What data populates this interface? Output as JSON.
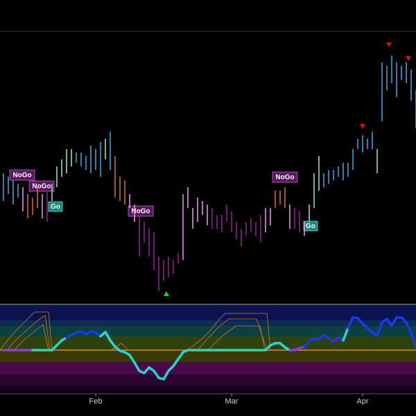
{
  "chart_data": {
    "type": "ohlc",
    "categories": [
      null,
      null,
      null,
      null,
      null,
      null,
      null,
      null,
      null,
      null,
      null,
      null,
      null,
      null,
      null,
      null,
      null,
      null,
      null,
      "Feb",
      null,
      null,
      null,
      null,
      null,
      null,
      null,
      null,
      null,
      null,
      null,
      null,
      null,
      null,
      null,
      null,
      null,
      null,
      null,
      null,
      null,
      null,
      null,
      null,
      null,
      null,
      null,
      "Mar",
      null,
      null,
      null,
      null,
      null,
      null,
      null,
      null,
      null,
      null,
      null,
      null,
      null,
      null,
      null,
      null,
      null,
      null,
      null,
      null,
      null,
      null,
      null,
      null,
      null,
      null,
      "Apr",
      null,
      null,
      null,
      null,
      null,
      null,
      null,
      null,
      null,
      null,
      null
    ],
    "high": [
      190,
      185,
      180,
      175,
      170,
      160,
      155,
      170,
      160,
      165,
      175,
      200,
      210,
      225,
      225,
      220,
      220,
      215,
      230,
      225,
      235,
      240,
      250,
      215,
      185,
      180,
      160,
      145,
      130,
      120,
      110,
      105,
      70,
      65,
      70,
      65,
      75,
      160,
      170,
      140,
      155,
      150,
      145,
      140,
      130,
      130,
      145,
      135,
      120,
      110,
      120,
      125,
      120,
      130,
      140,
      140,
      165,
      165,
      170,
      145,
      140,
      135,
      120,
      145,
      190,
      215,
      190,
      195,
      195,
      200,
      205,
      205,
      225,
      240,
      245,
      240,
      250,
      225,
      350,
      345,
      360,
      350,
      345,
      350,
      340,
      310
    ],
    "low": [
      150,
      160,
      145,
      155,
      135,
      125,
      130,
      140,
      125,
      120,
      150,
      170,
      185,
      190,
      200,
      205,
      200,
      195,
      190,
      195,
      185,
      210,
      195,
      155,
      150,
      145,
      140,
      120,
      70,
      90,
      70,
      50,
      20,
      35,
      40,
      45,
      60,
      65,
      140,
      110,
      120,
      130,
      115,
      110,
      110,
      105,
      120,
      105,
      95,
      85,
      100,
      105,
      100,
      90,
      105,
      115,
      140,
      145,
      140,
      110,
      110,
      105,
      100,
      120,
      140,
      165,
      170,
      175,
      180,
      185,
      180,
      185,
      195,
      225,
      220,
      225,
      225,
      190,
      265,
      310,
      320,
      300,
      325,
      320,
      295,
      255
    ],
    "colors": [
      "#3aa0d8",
      "#3aa0d8",
      "#3aa0d8",
      "#3aa0d8",
      "#e090e8",
      "#d2691e",
      "#d2691e",
      "#d2691e",
      "#e090e8",
      "#8e1f8e",
      "#7fe3c0",
      "#7fe3c0",
      "#7fe3c0",
      "#7fe3c0",
      "#7fe3c0",
      "#3aa0d8",
      "#3aa0d8",
      "#3aa0d8",
      "#3aa0d8",
      "#3aa0d8",
      "#3aa0d8",
      "#7fe3c0",
      "#3aa0d8",
      "#d2691e",
      "#d2691e",
      "#d2691e",
      "#e090e8",
      "#e090e8",
      "#8e1f8e",
      "#8e1f8e",
      "#8e1f8e",
      "#8e1f8e",
      "#8e1f8e",
      "#8e1f8e",
      "#8e1f8e",
      "#8e1f8e",
      "#8e1f8e",
      "#e090e8",
      "#e090e8",
      "#e090e8",
      "#e090e8",
      "#e090e8",
      "#e090e8",
      "#8e1f8e",
      "#8e1f8e",
      "#8e1f8e",
      "#8e1f8e",
      "#8e1f8e",
      "#8e1f8e",
      "#8e1f8e",
      "#8e1f8e",
      "#8e1f8e",
      "#8e1f8e",
      "#8e1f8e",
      "#e090e8",
      "#e090e8",
      "#d2691e",
      "#d2691e",
      "#d2691e",
      "#e090e8",
      "#8e1f8e",
      "#8e1f8e",
      "#e090e8",
      "#7fe3c0",
      "#7fe3c0",
      "#7fe3c0",
      "#3aa0d8",
      "#3aa0d8",
      "#3aa0d8",
      "#3aa0d8",
      "#3aa0d8",
      "#3aa0d8",
      "#3aa0d8",
      "#3aa0d8",
      "#3aa0d8",
      "#3aa0d8",
      "#3aa0d8",
      "#7fe3c0",
      "#3aa0d8",
      "#3aa0d8",
      "#3aa0d8",
      "#3aa0d8",
      "#3aa0d8",
      "#3aa0d8",
      "#3aa0d8",
      "#3aa0d8"
    ],
    "ylim": [
      0,
      400
    ],
    "annotations": [
      "NoGo",
      "NoGo",
      "Go",
      "NoGo",
      "NoGo",
      "Go"
    ],
    "oscillator": {
      "values": [
        0,
        0,
        0,
        0,
        0,
        0,
        0,
        0,
        0,
        0,
        0,
        7,
        14,
        18,
        22,
        25,
        27,
        23,
        27,
        26,
        20,
        26,
        14,
        5,
        -1,
        -3,
        -7,
        -18,
        -30,
        -33,
        -25,
        -30,
        -40,
        -42,
        -30,
        -23,
        -13,
        -3,
        0,
        0,
        0,
        0,
        0,
        0,
        0,
        0,
        0,
        0,
        0,
        0,
        0,
        0,
        0,
        0,
        0,
        7,
        10,
        10,
        4,
        0,
        0,
        3,
        5,
        13,
        17,
        15,
        22,
        17,
        12,
        18,
        14,
        32,
        47,
        46,
        38,
        32,
        25,
        21,
        40,
        45,
        35,
        47,
        47,
        40,
        25,
        5
      ],
      "colors": [
        "#8a3fd1",
        "#8a3fd1",
        "#8a3fd1",
        "#8a3fd1",
        "#8a3fd1",
        "#8a3fd1",
        "#3ecfa8",
        "#3ecfa8",
        "#3ecfa8",
        "#3ecfa8",
        "#2ad4d4",
        "#2ad4d4",
        "#2ad4d4",
        "#1a3ae8",
        "#1a3ae8",
        "#1a3ae8",
        "#1a3ae8",
        "#1a3ae8",
        "#1a3ae8",
        "#1a3ae8",
        "#2ad4d4",
        "#2ad4d4",
        "#2ad4d4",
        "#2ad4d4",
        "#2ad4d4",
        "#2ad4d4",
        "#2ad4d4",
        "#2ad4d4",
        "#2ad4d4",
        "#2ad4d4",
        "#2ad4d4",
        "#2ad4d4",
        "#2ad4d4",
        "#2ad4d4",
        "#2ad4d4",
        "#2ad4d4",
        "#2ad4d4",
        "#2ad4d4",
        "#3ecfa8",
        "#3ecfa8",
        "#3ecfa8",
        "#3ecfa8",
        "#3ecfa8",
        "#3ecfa8",
        "#3ecfa8",
        "#3ecfa8",
        "#3ecfa8",
        "#3ecfa8",
        "#3ecfa8",
        "#3ecfa8",
        "#3ecfa8",
        "#3ecfa8",
        "#3ecfa8",
        "#3ecfa8",
        "#2ad4d4",
        "#2ad4d4",
        "#2ad4d4",
        "#2ad4d4",
        "#2ad4d4",
        "#8a3fd1",
        "#8a3fd1",
        "#8a3fd1",
        "#1a3ae8",
        "#1a3ae8",
        "#1a3ae8",
        "#1a3ae8",
        "#1a3ae8",
        "#1a3ae8",
        "#1a3ae8",
        "#1a3ae8",
        "#2ad4d4",
        "#1a3ae8",
        "#1a3ae8",
        "#1a3ae8",
        "#1a3ae8",
        "#1a3ae8",
        "#1a3ae8",
        "#1a3ae8",
        "#1a3ae8",
        "#1a3ae8",
        "#1a3ae8",
        "#1a3ae8",
        "#1a3ae8",
        "#1a3ae8",
        "#1a3ae8",
        "#1a3ae8"
      ],
      "ylim": [
        -65,
        60
      ]
    }
  }
}
